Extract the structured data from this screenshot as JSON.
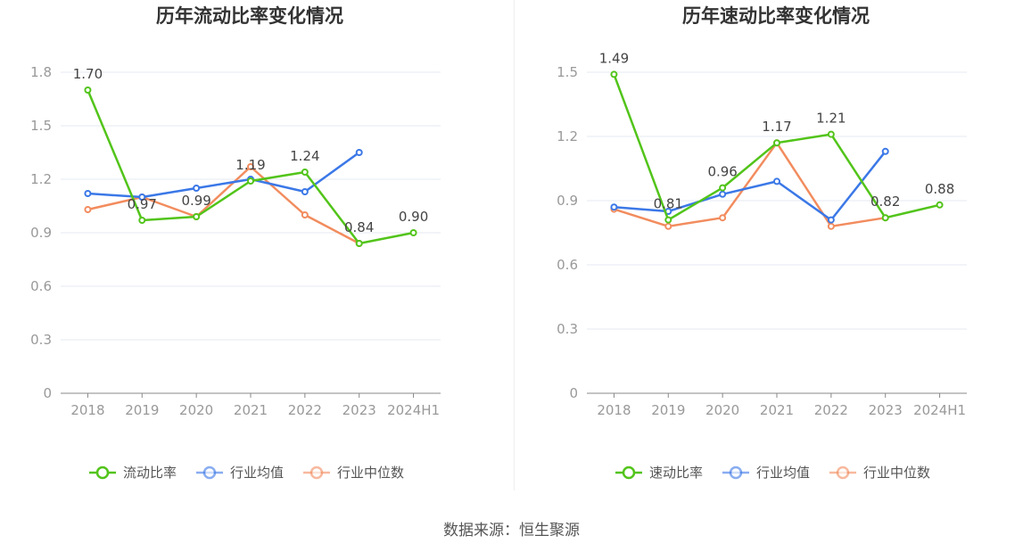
{
  "source": "数据来源：恒生聚源",
  "chart_data": [
    {
      "type": "line",
      "title": "历年流动比率变化情况",
      "categories": [
        "2018",
        "2019",
        "2020",
        "2021",
        "2022",
        "2023",
        "2024H1"
      ],
      "ylim": [
        0,
        1.8
      ],
      "yticks": [
        "0",
        "0.3",
        "0.6",
        "0.9",
        "1.2",
        "1.5",
        "1.8"
      ],
      "grid": true,
      "legend_position": "bottom",
      "series": [
        {
          "name": "流动比率",
          "color": "#52c41a",
          "values": [
            1.7,
            0.97,
            0.99,
            1.19,
            1.24,
            0.84,
            0.9
          ],
          "labels": [
            "1.70",
            "0.97",
            "0.99",
            "1.19",
            "1.24",
            "0.84",
            "0.90"
          ]
        },
        {
          "name": "行业均值",
          "color": "#3b78e7",
          "values": [
            1.12,
            1.1,
            1.15,
            1.2,
            1.13,
            1.35,
            null
          ]
        },
        {
          "name": "行业中位数",
          "color": "#f28c5e",
          "values": [
            1.03,
            1.1,
            0.99,
            1.27,
            1.0,
            0.84,
            null
          ]
        }
      ]
    },
    {
      "type": "line",
      "title": "历年速动比率变化情况",
      "categories": [
        "2018",
        "2019",
        "2020",
        "2021",
        "2022",
        "2023",
        "2024H1"
      ],
      "ylim": [
        0,
        1.5
      ],
      "yticks": [
        "0",
        "0.3",
        "0.6",
        "0.9",
        "1.2",
        "1.5"
      ],
      "grid": true,
      "legend_position": "bottom",
      "series": [
        {
          "name": "速动比率",
          "color": "#52c41a",
          "values": [
            1.49,
            0.81,
            0.96,
            1.17,
            1.21,
            0.82,
            0.88
          ],
          "labels": [
            "1.49",
            "0.81",
            "0.96",
            "1.17",
            "1.21",
            "0.82",
            "0.88"
          ]
        },
        {
          "name": "行业均值",
          "color": "#3b78e7",
          "values": [
            0.87,
            0.85,
            0.93,
            0.99,
            0.81,
            1.13,
            null
          ]
        },
        {
          "name": "行业中位数",
          "color": "#f28c5e",
          "values": [
            0.86,
            0.78,
            0.82,
            1.17,
            0.78,
            0.82,
            null
          ]
        }
      ]
    }
  ]
}
